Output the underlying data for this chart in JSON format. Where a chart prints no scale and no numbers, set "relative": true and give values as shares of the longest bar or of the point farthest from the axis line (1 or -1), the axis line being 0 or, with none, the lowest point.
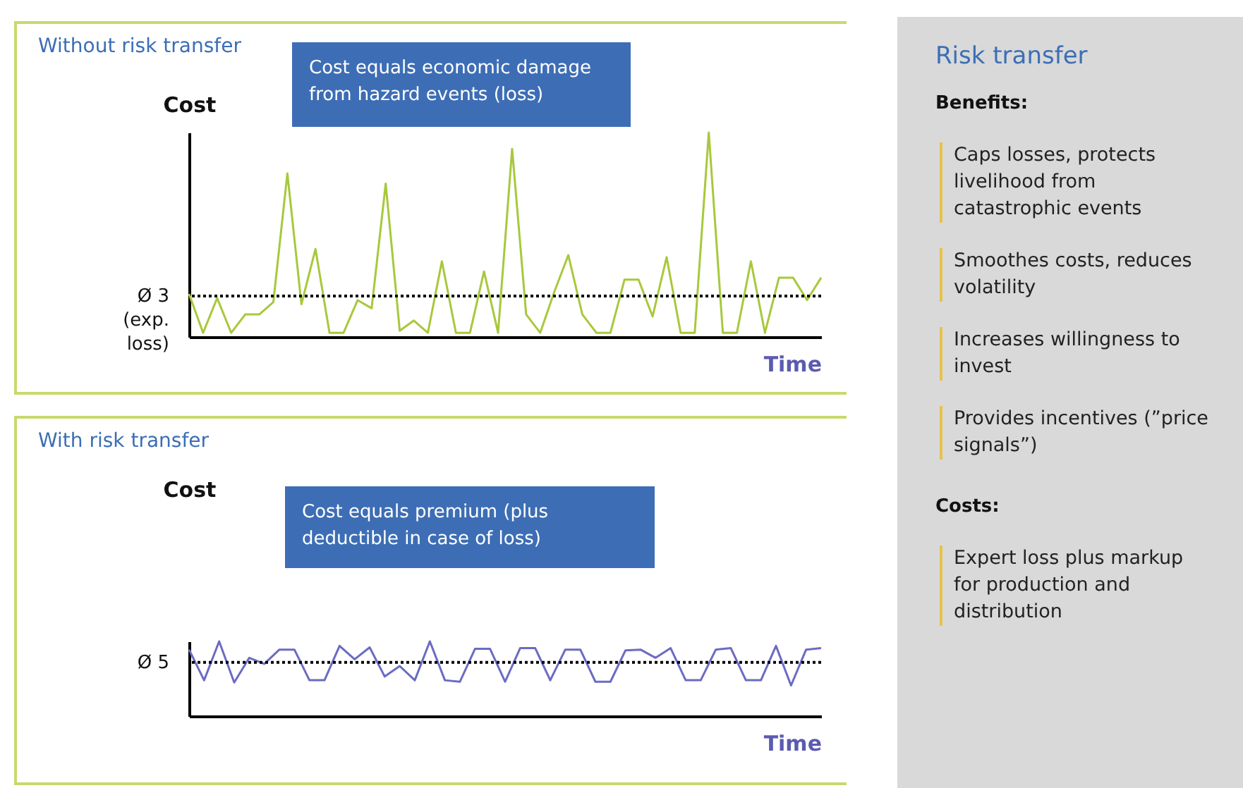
{
  "chart_data": [
    {
      "type": "line",
      "title": "Without risk transfer",
      "ylabel": "Cost",
      "xlabel": "Time",
      "relative": true,
      "annotations": [
        "Cost equals economic damage from hazard events (loss)"
      ],
      "categories": [
        null,
        null,
        null,
        null,
        null,
        null,
        null,
        null,
        null,
        null,
        null,
        null,
        null,
        null,
        null,
        null,
        null,
        null,
        null,
        null,
        null,
        null,
        null,
        null,
        null,
        null,
        null,
        null,
        null,
        null,
        null,
        null,
        null,
        null,
        null,
        null,
        null,
        null,
        null,
        null,
        null,
        null,
        null,
        null,
        null,
        null
      ],
      "series": [
        {
          "color": "#a8c83c",
          "values": [
            0.21,
            0.02,
            0.19,
            0.02,
            0.11,
            0.11,
            0.17,
            0.8,
            0.16,
            0.43,
            0.02,
            0.02,
            0.18,
            0.14,
            0.75,
            0.03,
            0.08,
            0.02,
            0.37,
            0.02,
            0.02,
            0.32,
            0.02,
            0.92,
            0.11,
            0.02,
            0.22,
            0.4,
            0.11,
            0.02,
            0.02,
            0.28,
            0.28,
            0.1,
            0.39,
            0.02,
            0.02,
            1,
            0.02,
            0.02,
            0.37,
            0.02,
            0.29,
            0.29,
            0.18,
            0.29
          ]
        }
      ],
      "ref_lines": [
        {
          "axis": "y",
          "value": 0.2,
          "label": "Ø 3\n(exp.\nloss)",
          "color": "#000000",
          "line_style": "dotted"
        }
      ]
    },
    {
      "type": "line",
      "title": "With risk transfer",
      "ylabel": "Cost",
      "xlabel": "Time",
      "relative": true,
      "annotations": [
        "Cost equals premium (plus deductible in case of loss)"
      ],
      "categories": [
        null,
        null,
        null,
        null,
        null,
        null,
        null,
        null,
        null,
        null,
        null,
        null,
        null,
        null,
        null,
        null,
        null,
        null,
        null,
        null,
        null,
        null,
        null,
        null,
        null,
        null,
        null,
        null,
        null,
        null,
        null,
        null,
        null,
        null,
        null,
        null,
        null,
        null,
        null,
        null,
        null,
        null,
        null
      ],
      "series": [
        {
          "color": "#6b6bc4",
          "values": [
            0.89,
            0.48,
            1,
            0.45,
            0.78,
            0.7,
            0.89,
            0.89,
            0.48,
            0.48,
            0.94,
            0.76,
            0.92,
            0.53,
            0.67,
            0.48,
            1,
            0.48,
            0.46,
            0.9,
            0.9,
            0.46,
            0.91,
            0.91,
            0.48,
            0.89,
            0.89,
            0.46,
            0.46,
            0.88,
            0.89,
            0.78,
            0.91,
            0.48,
            0.48,
            0.89,
            0.91,
            0.48,
            0.48,
            0.94,
            0.41,
            0.89,
            0.91
          ]
        }
      ],
      "ref_lines": [
        {
          "axis": "y",
          "value": 0.72,
          "label": "Ø 5",
          "color": "#000000",
          "line_style": "dotted"
        }
      ]
    },
    {
      "type": "other",
      "title": "Risk transfer",
      "subtitle": "Benefits:",
      "annotations": [
        "Caps losses, protects livelihood from catastrophic events",
        "Smoothes costs, reduces volatility",
        "Increases willingness to invest",
        "Provides incentives (”price signals”)"
      ]
    },
    {
      "type": "other",
      "subtitle": "Costs:",
      "annotations": [
        "Expert loss plus markup for production and distribution"
      ]
    }
  ]
}
